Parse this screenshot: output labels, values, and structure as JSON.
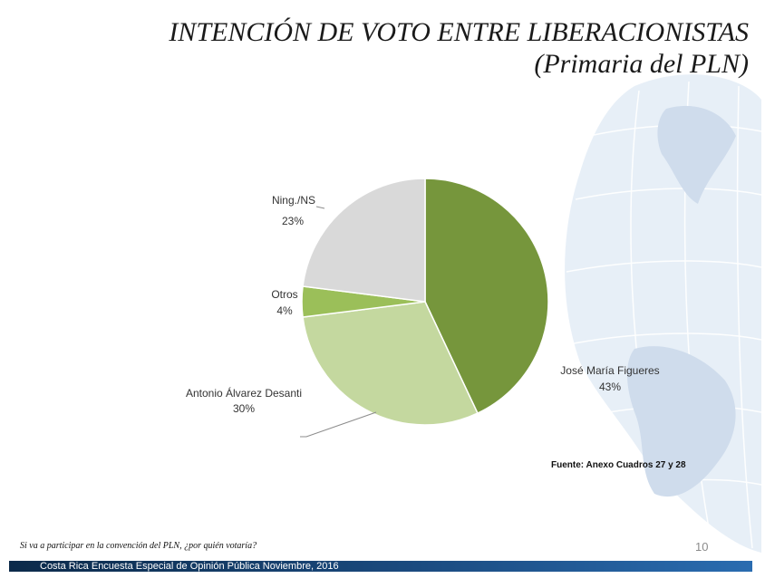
{
  "header": {
    "title_line1": "INTENCIÓN DE VOTO ENTRE LIBERACIONISTAS",
    "title_line2": "(Primaria del PLN)"
  },
  "chart_data": {
    "type": "pie",
    "title": "",
    "slices": [
      {
        "label": "José María Figueres",
        "value": 43,
        "value_label": "43%",
        "color": "#76963c"
      },
      {
        "label": "Antonio Álvarez Desanti",
        "value": 30,
        "value_label": "30%",
        "color": "#c4d89f"
      },
      {
        "label": "Otros",
        "value": 4,
        "value_label": "4%",
        "color": "#9bbf59"
      },
      {
        "label": "Ning./NS",
        "value": 23,
        "value_label": "23%",
        "color": "#d9d9d9"
      }
    ],
    "start": "12 o'clock",
    "direction": "clockwise",
    "legend": "none (data labels beside slices)"
  },
  "source": "Fuente: Anexo Cuadros 27 y 28",
  "question": "Si va a participar en la convención del PLN, ¿por quién votaría?",
  "page_number": "10",
  "footer": "Costa Rica Encuesta Especial de Opinión Pública Noviembre, 2016",
  "colors": {
    "footer_bar": "#1b4b80",
    "globe": "#dce7f3"
  }
}
